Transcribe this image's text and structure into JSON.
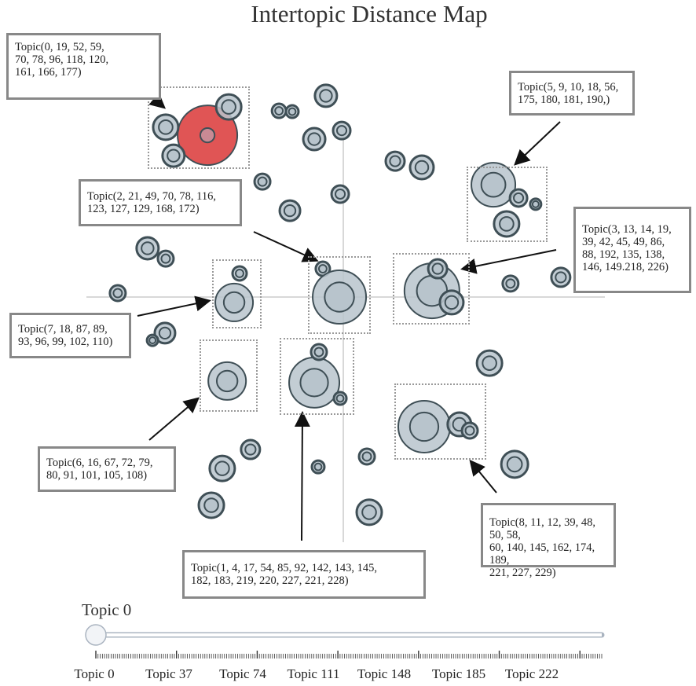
{
  "chart_data": {
    "type": "scatter",
    "title": "Intertopic Distance Map",
    "xlim": [
      -100,
      100
    ],
    "ylim": [
      -100,
      100
    ],
    "grid": false,
    "colors": {
      "selected": "#e05555",
      "bubble": "#b8c4cc",
      "stroke": "#3f4f56"
    },
    "bubbles": [
      {
        "x": -52.4,
        "y": 62.4,
        "size": 38,
        "selected": true
      },
      {
        "x": -44.2,
        "y": 73.3,
        "size": 16
      },
      {
        "x": -68.5,
        "y": 65.5,
        "size": 16
      },
      {
        "x": -65.5,
        "y": 54.5,
        "size": 14
      },
      {
        "x": -6.7,
        "y": 77.6,
        "size": 14
      },
      {
        "x": -24.8,
        "y": 71.8,
        "size": 9
      },
      {
        "x": -19.7,
        "y": 71.5,
        "size": 8
      },
      {
        "x": -11.2,
        "y": 60.9,
        "size": 14
      },
      {
        "x": -0.6,
        "y": 64.2,
        "size": 11
      },
      {
        "x": 20.0,
        "y": 52.4,
        "size": 12
      },
      {
        "x": 30.3,
        "y": 50.0,
        "size": 15
      },
      {
        "x": -31.2,
        "y": 44.5,
        "size": 10
      },
      {
        "x": -20.6,
        "y": 33.3,
        "size": 13
      },
      {
        "x": -1.2,
        "y": 39.7,
        "size": 11
      },
      {
        "x": -75.5,
        "y": 18.8,
        "size": 14
      },
      {
        "x": -68.5,
        "y": 14.8,
        "size": 10
      },
      {
        "x": -87.0,
        "y": 1.5,
        "size": 10
      },
      {
        "x": -7.9,
        "y": 10.9,
        "size": 9
      },
      {
        "x": -40.0,
        "y": 9.1,
        "size": 9
      },
      {
        "x": -42.1,
        "y": -2.1,
        "size": 24
      },
      {
        "x": -1.5,
        "y": 0,
        "size": 34
      },
      {
        "x": 34.2,
        "y": 2.4,
        "size": 35
      },
      {
        "x": 41.8,
        "y": -2.1,
        "size": 15
      },
      {
        "x": 36.4,
        "y": 10.9,
        "size": 12
      },
      {
        "x": 64.5,
        "y": 5.2,
        "size": 10
      },
      {
        "x": 83.9,
        "y": 7.6,
        "size": 12
      },
      {
        "x": -68.8,
        "y": -13.9,
        "size": 13
      },
      {
        "x": -73.6,
        "y": -16.7,
        "size": 7
      },
      {
        "x": 56.4,
        "y": -25.5,
        "size": 16
      },
      {
        "x": -44.8,
        "y": -32.4,
        "size": 24
      },
      {
        "x": -11.2,
        "y": -33.0,
        "size": 32
      },
      {
        "x": -9.4,
        "y": -21.2,
        "size": 10
      },
      {
        "x": -1.2,
        "y": -39.1,
        "size": 8
      },
      {
        "x": 31.2,
        "y": -50.0,
        "size": 33
      },
      {
        "x": 44.8,
        "y": -49.1,
        "size": 15
      },
      {
        "x": 48.8,
        "y": -51.5,
        "size": 10
      },
      {
        "x": 57.9,
        "y": 43.3,
        "size": 28
      },
      {
        "x": 67.6,
        "y": 38.2,
        "size": 11
      },
      {
        "x": 74.2,
        "y": 35.8,
        "size": 7
      },
      {
        "x": 63.0,
        "y": 28.2,
        "size": 16
      },
      {
        "x": 66.1,
        "y": -64.5,
        "size": 17
      },
      {
        "x": -35.8,
        "y": -58.8,
        "size": 12
      },
      {
        "x": -46.7,
        "y": -66.1,
        "size": 16
      },
      {
        "x": -50.9,
        "y": -80.3,
        "size": 16
      },
      {
        "x": -9.7,
        "y": -65.5,
        "size": 8
      },
      {
        "x": 9.1,
        "y": -61.5,
        "size": 10
      },
      {
        "x": 10.0,
        "y": -83.0,
        "size": 16
      }
    ],
    "annotations": [
      "Topic(0, 19, 52, 59,\n70, 78, 96, 118, 120,\n161, 166, 177)",
      "Topic(2, 21, 49, 70, 78, 116,\n123, 127, 129, 168, 172)",
      "Topic(5, 9, 10, 18, 56,\n175, 180, 181, 190,)",
      "Topic(3, 13, 14, 19,\n39, 42, 45, 49, 86,\n88, 192, 135, 138,\n146, 149.218, 226)",
      "Topic(7, 18, 87, 89,\n93, 96, 99, 102, 110)",
      "Topic(6, 16, 67, 72, 79,\n80, 91, 101, 105, 108)",
      "Topic(1, 4, 17, 54, 85, 92, 142, 143, 145,\n182, 183, 219, 220, 227, 221, 228)",
      "Topic(8, 11, 12, 39, 48, 50, 58,\n60, 140, 145, 162, 174, 189,\n221, 227, 229)"
    ]
  },
  "slider": {
    "label": "Topic 0",
    "value": 0,
    "min": 0,
    "max": 232,
    "tick_labels": [
      "Topic 0",
      "Topic 37",
      "Topic 74",
      "Topic 111",
      "Topic 148",
      "Topic 185",
      "Topic 222"
    ]
  }
}
